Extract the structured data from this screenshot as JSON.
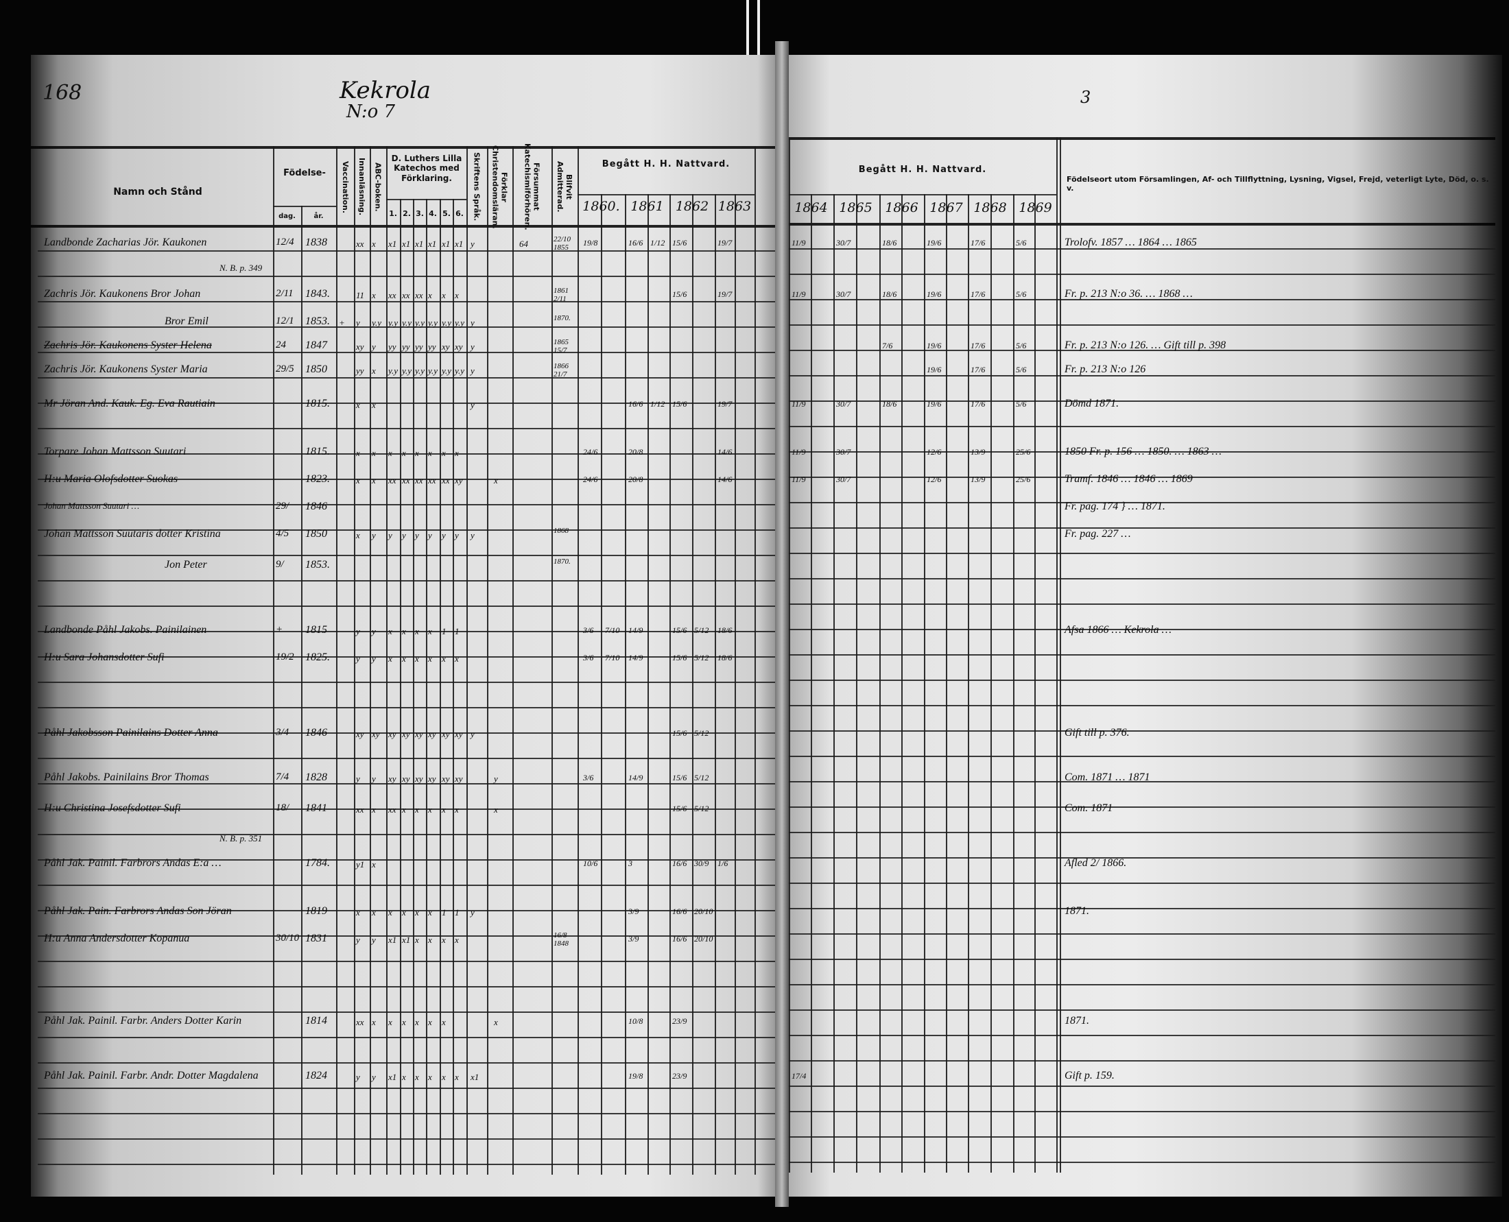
{
  "page_number": "168",
  "village": "Kekrola",
  "house_number": "N:o 7",
  "right_page_mark": "3",
  "headers": {
    "name": "Namn och Stånd",
    "birth": "Födelse-",
    "birth_day": "dag.",
    "birth_year": "år.",
    "vaccination": "Vaccination.",
    "reading": "Innanläsning.",
    "abc": "ABC-boken.",
    "luther": "D. Luthers Lilla Katechos med Förklaring.",
    "luther_parts": [
      "1.",
      "2.",
      "3.",
      "4.",
      "5.",
      "6."
    ],
    "scripture": "Skriftens Språk.",
    "christian": "Förklar Christendomsläran.",
    "missed": "Försummat Katechismiförhören.",
    "admitted": "Blifvit Admitterad.",
    "communion_left": "Begått H. H. Nattvard.",
    "communion_right": "Begått H. H. Nattvard.",
    "years_left": [
      "1860.",
      "1861",
      "1862",
      "1863"
    ],
    "years_right": [
      "1864",
      "1865",
      "1866",
      "1867",
      "1868",
      "1869"
    ],
    "remarks": "Födelseort utom Församlingen, Af- och Tillflyttning, Lysning, Vigsel, Frejd, veterligt Lyte, Död, o. s. v."
  },
  "rows": [
    {
      "name": "Landbonde Zacharias Jör. Kaukonen",
      "day": "12/4",
      "year": "1838",
      "marks": [
        "",
        "xx",
        "x",
        "x1",
        "x1",
        "x1",
        "x1",
        "x1",
        "x1"
      ],
      "skrift": "y",
      "missed": "64",
      "admitted": "22/10 1855",
      "comm": [
        [
          "1860",
          "19/8"
        ],
        [
          "1861",
          "16/6"
        ],
        [
          "1861b",
          "1/12"
        ],
        [
          "1862",
          "15/6"
        ],
        [
          "1863",
          "19/7"
        ],
        [
          "1864",
          "11/9"
        ],
        [
          "1865",
          "30/7"
        ],
        [
          "1866",
          "18/6"
        ],
        [
          "1867",
          "19/6"
        ],
        [
          "1868",
          "17/6"
        ],
        [
          "1869",
          "5/6"
        ]
      ],
      "remark": "Trolofv. 1857 … 1864 … 1865"
    },
    {
      "name": "N. B. p. 349",
      "note": true
    },
    {
      "name": "Zachris Jör. Kaukonens Bror Johan",
      "day": "2/11",
      "year": "1843.",
      "marks": [
        "",
        "11",
        "x",
        "xx",
        "xx",
        "xx",
        "x",
        "x",
        "x"
      ],
      "admitted": "1861 2/11",
      "comm": [
        [
          "1862",
          "15/6"
        ],
        [
          "1863",
          "19/7"
        ],
        [
          "1864",
          "11/9"
        ],
        [
          "1865",
          "30/7"
        ],
        [
          "1866",
          "18/6"
        ],
        [
          "1867",
          "19/6"
        ],
        [
          "1868",
          "17/6"
        ],
        [
          "1869",
          "5/6"
        ]
      ],
      "remark": "Fr. p. 213 N:o 36. … 1868 …"
    },
    {
      "name": "Bror Emil",
      "day": "12/1",
      "year": "1853.",
      "marks": [
        "+",
        "y",
        "y.y",
        "y.y",
        "y.y",
        "y.y",
        "y.y",
        "y.y",
        "y.y"
      ],
      "skrift": "y",
      "admitted": "1870.",
      "indent": true
    },
    {
      "name": "Zachris Jör. Kaukonens Syster Helena",
      "day": "24",
      "year": "1847",
      "marks": [
        "",
        "xy",
        "y",
        "yy",
        "yy",
        "yy",
        "yy",
        "xy",
        "xy"
      ],
      "skrift": "y",
      "admitted": "1865 15/7",
      "strike": true,
      "comm": [
        [
          "1866",
          "7/6"
        ],
        [
          "1867",
          "19/6"
        ],
        [
          "1868",
          "17/6"
        ],
        [
          "1869",
          "5/6"
        ]
      ],
      "remark": "Fr. p. 213 N:o 126. … Gift till p. 398"
    },
    {
      "name": "Zachris Jör. Kaukonens Syster Maria",
      "day": "29/5",
      "year": "1850",
      "marks": [
        "",
        "yy",
        "x",
        "y.y",
        "y.y",
        "y.y",
        "y.y",
        "y.y",
        "y.y"
      ],
      "skrift": "y",
      "admitted": "1866 21/7",
      "comm": [
        [
          "1867",
          "19/6"
        ],
        [
          "1868",
          "17/6"
        ],
        [
          "1869",
          "5/6"
        ]
      ],
      "remark": "Fr. p. 213 N:o 126"
    },
    {
      "name": "Mr Jöran And. Kauk. Eg. Eva Rautiain",
      "year": "1815.",
      "marks": [
        "",
        "x",
        "x",
        "",
        "",
        "",
        "",
        "",
        ""
      ],
      "skrift": "y",
      "comm": [
        [
          "1861",
          "16/6"
        ],
        [
          "1861b",
          "1/12"
        ],
        [
          "1862",
          "15/6"
        ],
        [
          "1863",
          "19/7"
        ],
        [
          "1864",
          "11/9"
        ],
        [
          "1865",
          "30/7"
        ],
        [
          "1866",
          "18/6"
        ],
        [
          "1867",
          "19/6"
        ],
        [
          "1868",
          "17/6"
        ],
        [
          "1869",
          "5/6"
        ]
      ],
      "remark": "Dömd 1871."
    },
    {
      "name": "Torpare Johan Mattsson Suutari",
      "year": "1815.",
      "marks": [
        "",
        "x",
        "x",
        "x",
        "x",
        "x",
        "x",
        "x",
        "x"
      ],
      "comm": [
        [
          "1860",
          "24/6"
        ],
        [
          "1861",
          "20/8"
        ],
        [
          "1863",
          "14/6"
        ],
        [
          "1864",
          "11/9"
        ],
        [
          "1865",
          "30/7"
        ],
        [
          "1867",
          "12/6"
        ],
        [
          "1868",
          "13/9"
        ],
        [
          "1869",
          "25/6"
        ]
      ],
      "remark": "1850 Fr. p. 156 … 1850. … 1863 …"
    },
    {
      "name": "H:u Maria Olofsdotter Suokas",
      "year": "1823.",
      "marks": [
        "",
        "x",
        "x",
        "xx",
        "xx",
        "xx",
        "xx",
        "xx",
        "xy"
      ],
      "christ": "x",
      "comm": [
        [
          "1860",
          "24/6"
        ],
        [
          "1861",
          "20/8"
        ],
        [
          "1863",
          "14/6"
        ],
        [
          "1864",
          "11/9"
        ],
        [
          "1865",
          "30/7"
        ],
        [
          "1867",
          "12/6"
        ],
        [
          "1868",
          "13/9"
        ],
        [
          "1869",
          "25/6"
        ]
      ],
      "remark": "Tramf. 1846 … 1846 … 1869"
    },
    {
      "name": "Johan Mattsson Suutari …",
      "day": "29/",
      "year": "1846",
      "small": true,
      "remark": "Fr. pag. 174 } … 1871."
    },
    {
      "name": "Johan Mattsson Suutaris dotter Kristina",
      "day": "4/5",
      "year": "1850",
      "marks": [
        "",
        "x",
        "y",
        "y",
        "y",
        "y",
        "y",
        "y",
        "y"
      ],
      "skrift": "y",
      "admitted": "1868",
      "remark": "Fr. pag. 227 …"
    },
    {
      "name": "Jon Peter",
      "day": "9/",
      "year": "1853.",
      "indent": true,
      "admitted": "1870."
    },
    {
      "name": "Landbonde Påhl Jakobs. Painilainen",
      "day": "+",
      "year": "1815",
      "marks": [
        "",
        "y",
        "y",
        "x",
        "x",
        "x",
        "x",
        "1",
        "1"
      ],
      "comm": [
        [
          "1860",
          "3/6"
        ],
        [
          "1860b",
          "7/10"
        ],
        [
          "1861",
          "14/9"
        ],
        [
          "1862",
          "15/6"
        ],
        [
          "1862b",
          "5/12"
        ],
        [
          "1863",
          "18/6"
        ]
      ],
      "remark": "Afsa 1866 … Kekrola …"
    },
    {
      "name": "H:u Sara Johansdotter Sufi",
      "day": "19/2",
      "year": "1825.",
      "marks": [
        "",
        "y",
        "y",
        "x",
        "x",
        "x",
        "x",
        "x",
        "x"
      ],
      "comm": [
        [
          "1860",
          "3/6"
        ],
        [
          "1860b",
          "7/10"
        ],
        [
          "1861",
          "14/9"
        ],
        [
          "1862",
          "15/6"
        ],
        [
          "1862b",
          "5/12"
        ],
        [
          "1863",
          "18/6"
        ]
      ]
    },
    {
      "name": "Påhl Jakobsson Painilains Dotter Anna",
      "day": "3/4",
      "year": "1846",
      "marks": [
        "",
        "xy",
        "xy",
        "xy",
        "xy",
        "xy",
        "xy",
        "xy",
        "xy"
      ],
      "skrift": "y",
      "strike": true,
      "comm": [
        [
          "1862",
          "15/6"
        ],
        [
          "1862b",
          "5/12"
        ]
      ],
      "remark": "Gift till p. 376."
    },
    {
      "name": "Påhl Jakobs. Painilains Bror Thomas",
      "day": "7/4",
      "year": "1828",
      "marks": [
        "",
        "y",
        "y",
        "xy",
        "xy",
        "xy",
        "xy",
        "xy",
        "xy"
      ],
      "christ": "y",
      "comm": [
        [
          "1860",
          "3/6"
        ],
        [
          "1861",
          "14/9"
        ],
        [
          "1862",
          "15/6"
        ],
        [
          "1862b",
          "5/12"
        ]
      ],
      "remark": "Com. 1871 … 1871"
    },
    {
      "name": "H:u Christina Josefsdotter Sufi",
      "day": "18/",
      "year": "1841",
      "marks": [
        "",
        "xx",
        "x",
        "xx",
        "x",
        "x",
        "x",
        "x",
        "x"
      ],
      "christ": "x",
      "comm": [
        [
          "1862",
          "15/6"
        ],
        [
          "1862b",
          "5/12"
        ]
      ],
      "remark": "Com. 1871"
    },
    {
      "name": "N. B. p. 351",
      "note": true
    },
    {
      "name": "Påhl Jak. Painil. Farbrors Andas E:a …",
      "year": "1784.",
      "marks": [
        "",
        "y1",
        "x",
        "",
        "",
        "",
        "",
        "",
        ""
      ],
      "comm": [
        [
          "1860",
          "10/6"
        ],
        [
          "1861",
          "3"
        ],
        [
          "1862",
          "16/6"
        ],
        [
          "1862b",
          "30/9"
        ],
        [
          "1863",
          "1/6"
        ]
      ],
      "remark": "Afled 2/ 1866."
    },
    {
      "name": "Påhl Jak. Pain. Farbrors Andas Son Jöran",
      "year": "1819",
      "marks": [
        "",
        "x",
        "x",
        "x",
        "x",
        "x",
        "x",
        "1",
        "1"
      ],
      "skrift": "y",
      "comm": [
        [
          "1861",
          "3/9"
        ],
        [
          "1862",
          "16/6"
        ],
        [
          "1862b",
          "20/10"
        ]
      ],
      "remark": "1871."
    },
    {
      "name": "H:u Anna Andersdotter Kopanua",
      "day": "30/10",
      "year": "1831",
      "marks": [
        "",
        "y",
        "y",
        "x1",
        "x1",
        "x",
        "x",
        "x",
        "x"
      ],
      "admitted": "16/8 1848",
      "comm": [
        [
          "1861",
          "3/9"
        ],
        [
          "1862",
          "16/6"
        ],
        [
          "1862b",
          "20/10"
        ]
      ]
    },
    {
      "name": "Påhl Jak. Painil. Farbr. Anders Dotter Karin",
      "year": "1814",
      "marks": [
        "",
        "xx",
        "x",
        "x",
        "x",
        "x",
        "x",
        "x",
        ""
      ],
      "christ": "x",
      "comm": [
        [
          "1861",
          "10/8"
        ],
        [
          "1862",
          "23/9"
        ]
      ],
      "remark": "1871."
    },
    {
      "name": "Påhl Jak. Painil. Farbr. Andr. Dotter Magdalena",
      "year": "1824",
      "marks": [
        "",
        "y",
        "y",
        "x1",
        "x",
        "x",
        "x",
        "x",
        "x"
      ],
      "skrift": "x1",
      "comm": [
        [
          "1861",
          "19/8"
        ],
        [
          "1862",
          "23/9"
        ],
        [
          "1864",
          "17/4"
        ]
      ],
      "remark": "Gift p. 159."
    }
  ]
}
